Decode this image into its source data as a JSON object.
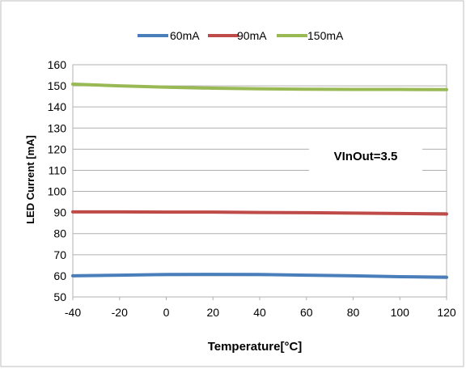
{
  "chart_data": {
    "type": "line",
    "xlabel": "Temperature[°C]",
    "ylabel": "LED Current [mA]",
    "annotation": "VInOut=3.5",
    "xlim": [
      -40,
      120
    ],
    "ylim": [
      50,
      160
    ],
    "x_ticks": [
      -40,
      -20,
      0,
      20,
      40,
      60,
      80,
      100,
      120
    ],
    "y_ticks": [
      50,
      60,
      70,
      80,
      90,
      100,
      110,
      120,
      130,
      140,
      150,
      160
    ],
    "grid": true,
    "legend": "top",
    "x": [
      -40,
      -20,
      0,
      20,
      40,
      60,
      80,
      100,
      120
    ],
    "series": [
      {
        "name": "60mA",
        "color": "#4a7ebb",
        "values": [
          60.0,
          60.3,
          60.6,
          60.7,
          60.6,
          60.3,
          60.0,
          59.6,
          59.3
        ]
      },
      {
        "name": "90mA",
        "color": "#be4b48",
        "values": [
          90.3,
          90.3,
          90.2,
          90.2,
          90.0,
          89.9,
          89.7,
          89.5,
          89.3
        ]
      },
      {
        "name": "150mA",
        "color": "#98b954",
        "values": [
          150.8,
          150.0,
          149.4,
          148.9,
          148.6,
          148.4,
          148.3,
          148.3,
          148.2
        ]
      }
    ]
  }
}
